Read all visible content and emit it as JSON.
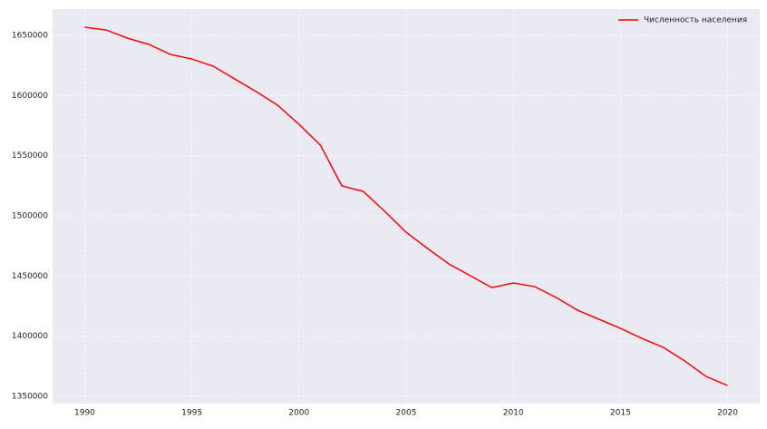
{
  "chart_data": {
    "type": "line",
    "x": [
      1990,
      1991,
      1992,
      1993,
      1994,
      1995,
      1996,
      1997,
      1998,
      1999,
      2000,
      2001,
      2002,
      2003,
      2004,
      2005,
      2006,
      2007,
      2008,
      2009,
      2010,
      2011,
      2012,
      2013,
      2014,
      2015,
      2016,
      2017,
      2018,
      2019,
      2020
    ],
    "series": [
      {
        "name": "Численность населения",
        "color": "#ff0000",
        "values": [
          1656800,
          1654500,
          1647700,
          1642500,
          1634200,
          1630400,
          1624400,
          1613800,
          1603300,
          1592000,
          1576100,
          1558800,
          1524900,
          1520300,
          1503800,
          1486400,
          1472900,
          1460000,
          1450200,
          1440400,
          1444200,
          1441200,
          1432200,
          1421600,
          1414100,
          1406500,
          1398200,
          1390700,
          1379400,
          1366500,
          1359000
        ]
      }
    ],
    "xlim": [
      1988.5,
      2021.5
    ],
    "xticks": [
      1990,
      1995,
      2000,
      2005,
      2010,
      2015,
      2020
    ],
    "ylim": [
      1344000,
      1671900
    ],
    "yticks": [
      1350000,
      1400000,
      1450000,
      1500000,
      1550000,
      1600000,
      1650000
    ],
    "grid": true,
    "legend": "upper right"
  }
}
